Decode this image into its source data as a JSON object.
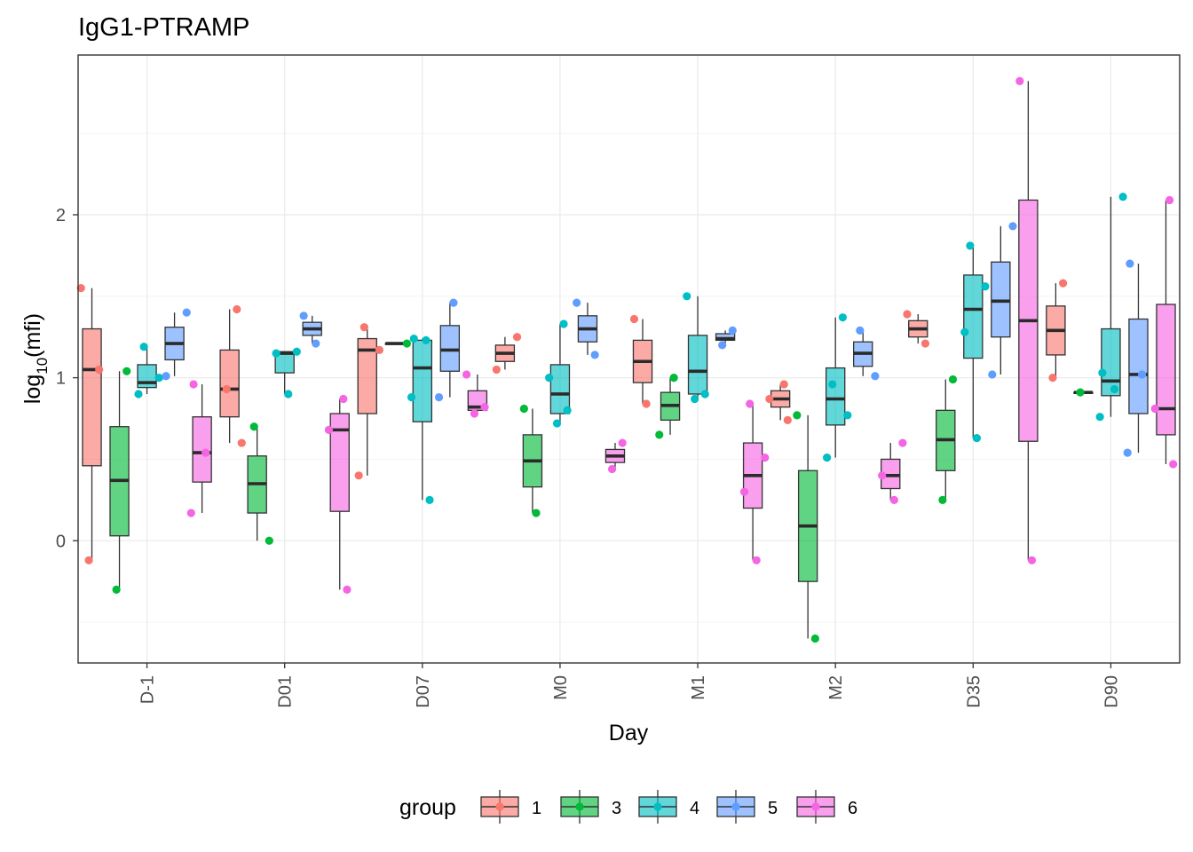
{
  "chart_data": {
    "type": "boxplot",
    "title": "IgG1-PTRAMP",
    "xlabel": "Day",
    "ylabel": "log10(mfi)",
    "ylabel_parts": {
      "base": "log",
      "sub": "10",
      "arg": "(mfi)"
    },
    "categories": [
      "D-1",
      "D01",
      "D07",
      "M0",
      "M1",
      "M2",
      "D35",
      "D90"
    ],
    "ylim": [
      -0.75,
      2.98
    ],
    "yticks": [
      0,
      1,
      2
    ],
    "grid": true,
    "legend": {
      "title": "group",
      "position": "bottom"
    },
    "series": [
      {
        "name": "1",
        "color": "#F8766D",
        "boxes": [
          {
            "q1": 0.46,
            "median": 1.05,
            "q3": 1.3,
            "lower": -0.12,
            "upper": 1.55,
            "points": [
              1.55,
              1.05,
              -0.12
            ]
          },
          {
            "q1": 0.76,
            "median": 0.93,
            "q3": 1.17,
            "lower": 0.6,
            "upper": 1.42,
            "points": [
              1.42,
              0.93,
              0.6
            ]
          },
          {
            "q1": 0.78,
            "median": 1.17,
            "q3": 1.24,
            "lower": 0.4,
            "upper": 1.3,
            "points": [
              1.31,
              1.17,
              0.4
            ]
          },
          {
            "q1": 1.1,
            "median": 1.15,
            "q3": 1.2,
            "lower": 1.05,
            "upper": 1.25,
            "points": [
              1.25,
              1.05
            ]
          },
          {
            "q1": 0.97,
            "median": 1.1,
            "q3": 1.23,
            "lower": 0.84,
            "upper": 1.36,
            "points": [
              1.36,
              0.84
            ]
          },
          {
            "q1": 0.82,
            "median": 0.87,
            "q3": 0.92,
            "lower": 0.74,
            "upper": 0.96,
            "points": [
              0.96,
              0.87,
              0.74
            ]
          },
          {
            "q1": 1.25,
            "median": 1.3,
            "q3": 1.35,
            "lower": 1.21,
            "upper": 1.39,
            "points": [
              1.39,
              1.21
            ]
          },
          {
            "q1": 1.14,
            "median": 1.29,
            "q3": 1.44,
            "lower": 1.0,
            "upper": 1.58,
            "points": [
              1.58,
              1.0
            ]
          }
        ]
      },
      {
        "name": "3",
        "color": "#00BA38",
        "boxes": [
          {
            "q1": 0.03,
            "median": 0.37,
            "q3": 0.7,
            "lower": -0.3,
            "upper": 1.04,
            "points": [
              1.04,
              -0.3
            ]
          },
          {
            "q1": 0.17,
            "median": 0.35,
            "q3": 0.52,
            "lower": 0.0,
            "upper": 0.7,
            "points": [
              0.7,
              0.0
            ]
          },
          {
            "q1": 1.21,
            "median": 1.21,
            "q3": 1.21,
            "lower": 1.21,
            "upper": 1.21,
            "points": [
              1.21
            ]
          },
          {
            "q1": 0.33,
            "median": 0.49,
            "q3": 0.65,
            "lower": 0.17,
            "upper": 0.81,
            "points": [
              0.81,
              0.17
            ]
          },
          {
            "q1": 0.74,
            "median": 0.83,
            "q3": 0.91,
            "lower": 0.65,
            "upper": 1.0,
            "points": [
              1.0,
              0.65
            ]
          },
          {
            "q1": -0.25,
            "median": 0.09,
            "q3": 0.43,
            "lower": -0.6,
            "upper": 0.77,
            "points": [
              0.77,
              -0.6
            ]
          },
          {
            "q1": 0.43,
            "median": 0.62,
            "q3": 0.8,
            "lower": 0.25,
            "upper": 0.99,
            "points": [
              0.99,
              0.25
            ]
          },
          {
            "q1": 0.91,
            "median": 0.91,
            "q3": 0.91,
            "lower": 0.91,
            "upper": 0.91,
            "points": [
              0.91
            ]
          }
        ]
      },
      {
        "name": "4",
        "color": "#00BFC4",
        "boxes": [
          {
            "q1": 0.94,
            "median": 0.97,
            "q3": 1.08,
            "lower": 0.9,
            "upper": 1.19,
            "points": [
              1.19,
              1.0,
              0.9
            ]
          },
          {
            "q1": 1.03,
            "median": 1.15,
            "q3": 1.16,
            "lower": 0.9,
            "upper": 1.16,
            "points": [
              1.16,
              1.15,
              0.9
            ]
          },
          {
            "q1": 0.73,
            "median": 1.06,
            "q3": 1.23,
            "lower": 0.25,
            "upper": 1.24,
            "points": [
              1.24,
              1.23,
              0.88,
              0.25
            ]
          },
          {
            "q1": 0.78,
            "median": 0.9,
            "q3": 1.08,
            "lower": 0.72,
            "upper": 1.33,
            "points": [
              1.33,
              1.0,
              0.8,
              0.72
            ]
          },
          {
            "q1": 0.9,
            "median": 1.04,
            "q3": 1.26,
            "lower": 0.87,
            "upper": 1.5,
            "points": [
              1.5,
              0.9,
              0.87
            ]
          },
          {
            "q1": 0.71,
            "median": 0.87,
            "q3": 1.06,
            "lower": 0.51,
            "upper": 1.37,
            "points": [
              1.37,
              0.96,
              0.77,
              0.51
            ]
          },
          {
            "q1": 1.12,
            "median": 1.42,
            "q3": 1.63,
            "lower": 0.63,
            "upper": 1.81,
            "points": [
              1.81,
              1.56,
              1.28,
              0.63
            ]
          },
          {
            "q1": 0.89,
            "median": 0.98,
            "q3": 1.3,
            "lower": 0.76,
            "upper": 2.11,
            "points": [
              2.11,
              1.03,
              0.93,
              0.76
            ]
          }
        ]
      },
      {
        "name": "5",
        "color": "#619CFF",
        "boxes": [
          {
            "q1": 1.11,
            "median": 1.21,
            "q3": 1.31,
            "lower": 1.01,
            "upper": 1.4,
            "points": [
              1.4,
              1.01
            ]
          },
          {
            "q1": 1.26,
            "median": 1.3,
            "q3": 1.34,
            "lower": 1.21,
            "upper": 1.38,
            "points": [
              1.38,
              1.21
            ]
          },
          {
            "q1": 1.04,
            "median": 1.17,
            "q3": 1.32,
            "lower": 0.88,
            "upper": 1.46,
            "points": [
              1.46,
              0.88
            ]
          },
          {
            "q1": 1.22,
            "median": 1.3,
            "q3": 1.38,
            "lower": 1.14,
            "upper": 1.46,
            "points": [
              1.46,
              1.14
            ]
          },
          {
            "q1": 1.23,
            "median": 1.24,
            "q3": 1.27,
            "lower": 1.2,
            "upper": 1.29,
            "points": [
              1.29,
              1.2
            ]
          },
          {
            "q1": 1.07,
            "median": 1.15,
            "q3": 1.22,
            "lower": 1.01,
            "upper": 1.29,
            "points": [
              1.29,
              1.01
            ]
          },
          {
            "q1": 1.25,
            "median": 1.47,
            "q3": 1.71,
            "lower": 1.02,
            "upper": 1.93,
            "points": [
              1.93,
              1.02
            ]
          },
          {
            "q1": 0.78,
            "median": 1.02,
            "q3": 1.36,
            "lower": 0.54,
            "upper": 1.7,
            "points": [
              1.7,
              1.02,
              0.54
            ]
          }
        ]
      },
      {
        "name": "6",
        "color": "#F564E3",
        "boxes": [
          {
            "q1": 0.36,
            "median": 0.54,
            "q3": 0.76,
            "lower": 0.17,
            "upper": 0.96,
            "points": [
              0.96,
              0.54,
              0.17
            ]
          },
          {
            "q1": 0.18,
            "median": 0.68,
            "q3": 0.78,
            "lower": -0.3,
            "upper": 0.87,
            "points": [
              0.87,
              0.68,
              -0.3
            ]
          },
          {
            "q1": 0.8,
            "median": 0.82,
            "q3": 0.92,
            "lower": 0.78,
            "upper": 1.02,
            "points": [
              1.02,
              0.82,
              0.78
            ]
          },
          {
            "q1": 0.48,
            "median": 0.52,
            "q3": 0.56,
            "lower": 0.44,
            "upper": 0.6,
            "points": [
              0.6,
              0.44
            ]
          },
          {
            "q1": 0.2,
            "median": 0.4,
            "q3": 0.6,
            "lower": -0.12,
            "upper": 0.84,
            "points": [
              0.84,
              0.51,
              0.3,
              -0.12
            ]
          },
          {
            "q1": 0.32,
            "median": 0.4,
            "q3": 0.5,
            "lower": 0.25,
            "upper": 0.6,
            "points": [
              0.6,
              0.4,
              0.25
            ]
          },
          {
            "q1": 0.61,
            "median": 1.35,
            "q3": 2.09,
            "lower": -0.12,
            "upper": 2.82,
            "points": [
              2.82,
              -0.12
            ]
          },
          {
            "q1": 0.65,
            "median": 0.81,
            "q3": 1.45,
            "lower": 0.47,
            "upper": 2.09,
            "points": [
              2.09,
              0.81,
              0.47
            ]
          }
        ]
      }
    ]
  }
}
